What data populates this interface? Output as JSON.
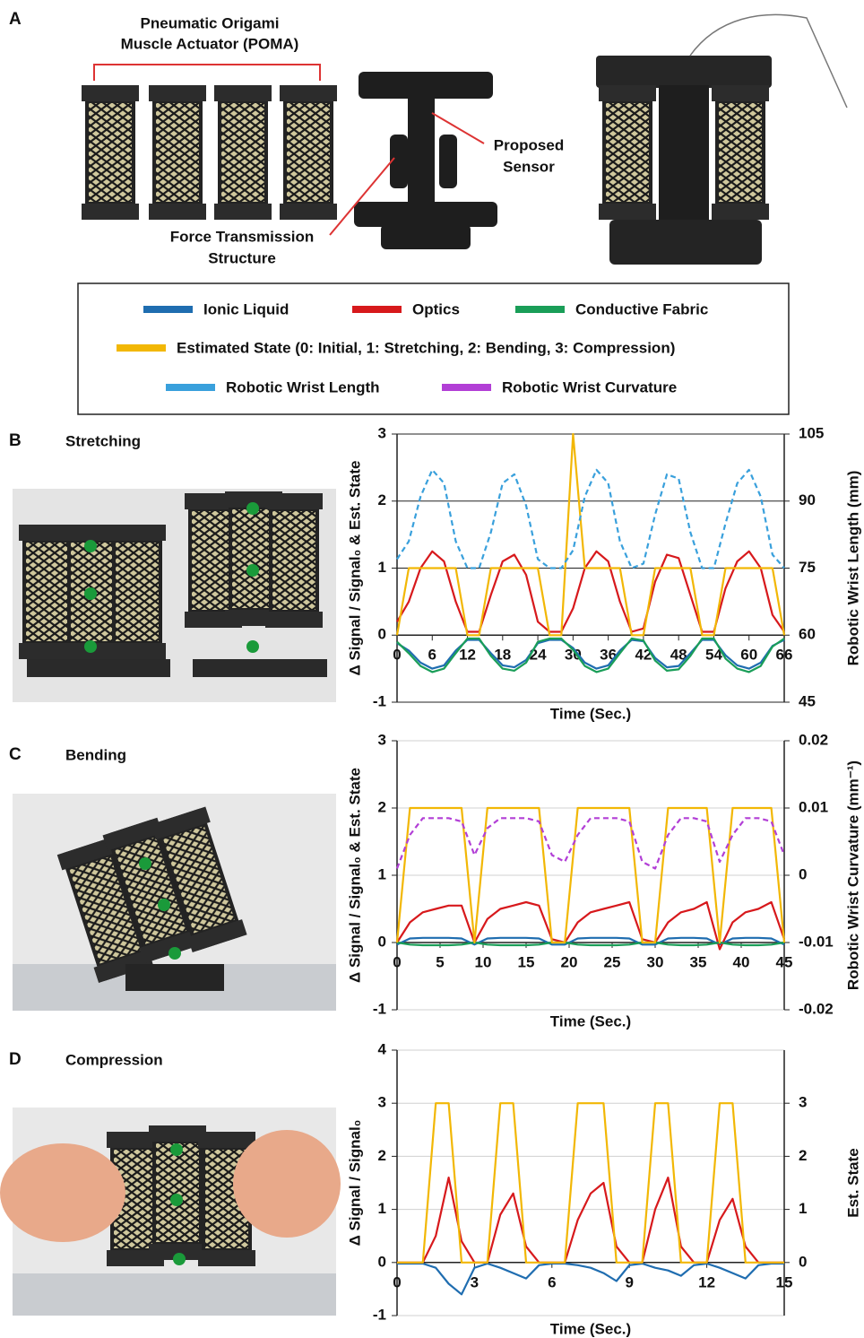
{
  "figure": {
    "panel_labels": [
      "A",
      "B",
      "C",
      "D"
    ],
    "panel_titles": [
      "Stretching",
      "Bending",
      "Compression"
    ],
    "poma": [
      "Pneumatic Origami",
      "Muscle Actuator (POMA)"
    ],
    "sensor": [
      "Proposed",
      "Sensor"
    ],
    "force": [
      "Force Transmission",
      "Structure"
    ]
  },
  "chart_data": [
    {
      "type": "line",
      "xlabel": "Time (Sec.)",
      "ylabel": "Δ Signal / Signal₀ & Est. State",
      "y2label": "Robotic Wrist  Length (mm)",
      "x": [
        0,
        2,
        4,
        6,
        8,
        10,
        12,
        14,
        16,
        18,
        20,
        22,
        24,
        26,
        28,
        30,
        32,
        34,
        36,
        38,
        40,
        42,
        44,
        46,
        48,
        50,
        52,
        54,
        56,
        58,
        60,
        62,
        64,
        66
      ],
      "xlim": [
        0,
        66
      ],
      "xticks": [
        0,
        6,
        12,
        18,
        24,
        30,
        36,
        42,
        48,
        54,
        60,
        66
      ],
      "ylim": [
        -1,
        3
      ],
      "yticks": [
        -1,
        0,
        1,
        2,
        3
      ],
      "y2lim": [
        45,
        105
      ],
      "y2ticks": [
        45,
        60,
        75,
        90,
        105
      ],
      "grid": true,
      "grid_color": "#222222",
      "series": [
        {
          "name": "Ionic Liquid",
          "color": "#1f6db0",
          "values": [
            -0.12,
            -0.23,
            -0.41,
            -0.5,
            -0.45,
            -0.23,
            -0.07,
            -0.07,
            -0.27,
            -0.45,
            -0.48,
            -0.37,
            -0.12,
            -0.07,
            -0.07,
            -0.19,
            -0.41,
            -0.5,
            -0.45,
            -0.23,
            -0.07,
            -0.09,
            -0.34,
            -0.48,
            -0.46,
            -0.27,
            -0.07,
            -0.07,
            -0.3,
            -0.45,
            -0.5,
            -0.41,
            -0.16,
            -0.07
          ]
        },
        {
          "name": "Optics",
          "color": "#d7191c",
          "values": [
            0.2,
            0.5,
            1.0,
            1.25,
            1.1,
            0.5,
            0.05,
            0.05,
            0.6,
            1.1,
            1.2,
            0.9,
            0.2,
            0.05,
            0.05,
            0.4,
            1.0,
            1.25,
            1.1,
            0.5,
            0.05,
            0.1,
            0.8,
            1.2,
            1.15,
            0.6,
            0.05,
            0.05,
            0.7,
            1.1,
            1.25,
            1.0,
            0.3,
            0.05
          ]
        },
        {
          "name": "Conductive Fabric",
          "color": "#1a9e58",
          "values": [
            -0.1,
            -0.27,
            -0.46,
            -0.55,
            -0.5,
            -0.27,
            -0.05,
            -0.05,
            -0.31,
            -0.5,
            -0.53,
            -0.41,
            -0.1,
            -0.05,
            -0.05,
            -0.22,
            -0.46,
            -0.55,
            -0.5,
            -0.27,
            -0.05,
            -0.08,
            -0.38,
            -0.53,
            -0.51,
            -0.31,
            -0.05,
            -0.05,
            -0.35,
            -0.5,
            -0.55,
            -0.46,
            -0.17,
            -0.05
          ]
        },
        {
          "name": "Estimated State (0: Initial, 1: Stretching, 2: Bending, 3: Compression)",
          "color": "#f2b705",
          "values": [
            0,
            1,
            1,
            1,
            1,
            1,
            0,
            0,
            1,
            1,
            1,
            1,
            1,
            0,
            0,
            3,
            1,
            1,
            1,
            1,
            0,
            0,
            1,
            1,
            1,
            1,
            0,
            0,
            1,
            1,
            1,
            1,
            1,
            0
          ]
        },
        {
          "name": "Robotic Wrist Length",
          "color": "#39a0dc",
          "dashed": true,
          "axis": "y2",
          "values": [
            77,
            81,
            91,
            97,
            94,
            81,
            75,
            75,
            83,
            94,
            96,
            89,
            77,
            75,
            75,
            79,
            91,
            97,
            94,
            81,
            75,
            76,
            87,
            96,
            95,
            83,
            75,
            75,
            85,
            94,
            97,
            91,
            78,
            75
          ]
        }
      ]
    },
    {
      "type": "line",
      "xlabel": "Time (Sec.)",
      "ylabel": "Δ Signal / Signal₀ & Est. State",
      "y2label": "Robotic Wrist  Curvature (mm⁻¹)",
      "x": [
        0,
        1.5,
        3,
        4.5,
        6,
        7.5,
        9,
        10.5,
        12,
        13.5,
        15,
        16.5,
        18,
        19.5,
        21,
        22.5,
        24,
        25.5,
        27,
        28.5,
        30,
        31.5,
        33,
        34.5,
        36,
        37.5,
        39,
        40.5,
        42,
        43.5,
        45
      ],
      "xlim": [
        0,
        45
      ],
      "xticks": [
        0,
        5,
        10,
        15,
        20,
        25,
        30,
        35,
        40,
        45
      ],
      "ylim": [
        -1,
        3
      ],
      "yticks": [
        -1,
        0,
        1,
        2,
        3
      ],
      "y2lim": [
        -0.02,
        0.02
      ],
      "y2ticks": [
        -0.02,
        -0.01,
        0,
        0.01,
        0.02
      ],
      "grid": true,
      "grid_color": "#d0d0d0",
      "series": [
        {
          "color": "#1f6db0",
          "values": [
            -0.03,
            0.06,
            0.07,
            0.07,
            0.07,
            0.06,
            -0.03,
            0.06,
            0.07,
            0.07,
            0.07,
            0.06,
            -0.03,
            -0.03,
            0.06,
            0.07,
            0.07,
            0.07,
            0.06,
            -0.03,
            -0.03,
            0.06,
            0.07,
            0.07,
            0.06,
            -0.03,
            0.06,
            0.07,
            0.07,
            0.06,
            -0.03
          ]
        },
        {
          "color": "#d7191c",
          "values": [
            0,
            0.3,
            0.45,
            0.5,
            0.55,
            0.55,
            0,
            0.35,
            0.5,
            0.55,
            0.6,
            0.55,
            0.05,
            0,
            0.3,
            0.45,
            0.5,
            0.55,
            0.6,
            0.05,
            0,
            0.3,
            0.45,
            0.5,
            0.6,
            -0.1,
            0.3,
            0.45,
            0.5,
            0.6,
            0.05
          ]
        },
        {
          "color": "#1a9e58",
          "values": [
            0,
            -0.03,
            -0.04,
            -0.04,
            -0.04,
            -0.03,
            0,
            -0.03,
            -0.04,
            -0.04,
            -0.04,
            -0.03,
            0,
            0,
            -0.03,
            -0.04,
            -0.04,
            -0.04,
            -0.03,
            0,
            0,
            -0.03,
            -0.04,
            -0.04,
            -0.03,
            0,
            -0.03,
            -0.04,
            -0.04,
            -0.03,
            0
          ]
        },
        {
          "color": "#f2b705",
          "values": [
            0,
            2,
            2,
            2,
            2,
            2,
            0,
            2,
            2,
            2,
            2,
            2,
            0,
            0,
            2,
            2,
            2,
            2,
            2,
            0,
            0,
            2,
            2,
            2,
            2,
            0,
            2,
            2,
            2,
            2,
            0
          ]
        },
        {
          "name": "Robotic Wrist Curvature",
          "color": "#b23fd6",
          "dashed": true,
          "axis": "y2",
          "values": [
            0.001,
            0.006,
            0.0085,
            0.0085,
            0.0085,
            0.008,
            0.003,
            0.007,
            0.0085,
            0.0085,
            0.0085,
            0.008,
            0.003,
            0.002,
            0.006,
            0.0085,
            0.0085,
            0.0085,
            0.008,
            0.002,
            0.001,
            0.006,
            0.0085,
            0.0085,
            0.008,
            0.002,
            0.006,
            0.0085,
            0.0085,
            0.008,
            0.003
          ]
        }
      ]
    },
    {
      "type": "line",
      "xlabel": "Time (Sec.)",
      "ylabel": "Δ Signal / Signal₀",
      "y2label": "Est. State",
      "x": [
        0,
        0.5,
        1,
        1.5,
        2,
        2.5,
        3,
        3.5,
        4,
        4.5,
        5,
        5.5,
        6,
        6.5,
        7,
        7.5,
        8,
        8.5,
        9,
        9.5,
        10,
        10.5,
        11,
        11.5,
        12,
        12.5,
        13,
        13.5,
        14,
        14.5,
        15
      ],
      "xlim": [
        0,
        15
      ],
      "xticks": [
        0,
        3,
        6,
        9,
        12,
        15
      ],
      "ylim": [
        -1,
        4
      ],
      "yticks": [
        -1,
        0,
        1,
        2,
        3,
        4
      ],
      "y2lim": [
        -1,
        4
      ],
      "y2ticks": [
        0,
        1,
        2,
        3
      ],
      "grid": true,
      "grid_color": "#d0d0d0",
      "series": [
        {
          "color": "#1f6db0",
          "values": [
            -0.02,
            -0.02,
            -0.02,
            -0.1,
            -0.4,
            -0.6,
            -0.1,
            -0.02,
            -0.1,
            -0.2,
            -0.3,
            -0.05,
            -0.02,
            -0.02,
            -0.05,
            -0.1,
            -0.2,
            -0.35,
            -0.05,
            -0.02,
            -0.1,
            -0.15,
            -0.25,
            -0.05,
            -0.02,
            -0.1,
            -0.2,
            -0.3,
            -0.05,
            -0.02,
            -0.02
          ]
        },
        {
          "color": "#d7191c",
          "values": [
            0,
            0,
            0,
            0.5,
            1.6,
            0.4,
            0,
            0,
            0.9,
            1.3,
            0.3,
            0,
            0,
            0,
            0.8,
            1.3,
            1.5,
            0.3,
            0,
            0,
            1.0,
            1.6,
            0.3,
            0,
            0,
            0.8,
            1.2,
            0.3,
            0,
            0,
            0
          ]
        },
        {
          "color": "#f2b705",
          "axis": "y2",
          "values": [
            0,
            0,
            0,
            3,
            3,
            0,
            0,
            0,
            3,
            3,
            0,
            0,
            0,
            0,
            3,
            3,
            3,
            0,
            0,
            0,
            3,
            3,
            0,
            0,
            0,
            3,
            3,
            0,
            0,
            0,
            0
          ]
        }
      ]
    }
  ]
}
